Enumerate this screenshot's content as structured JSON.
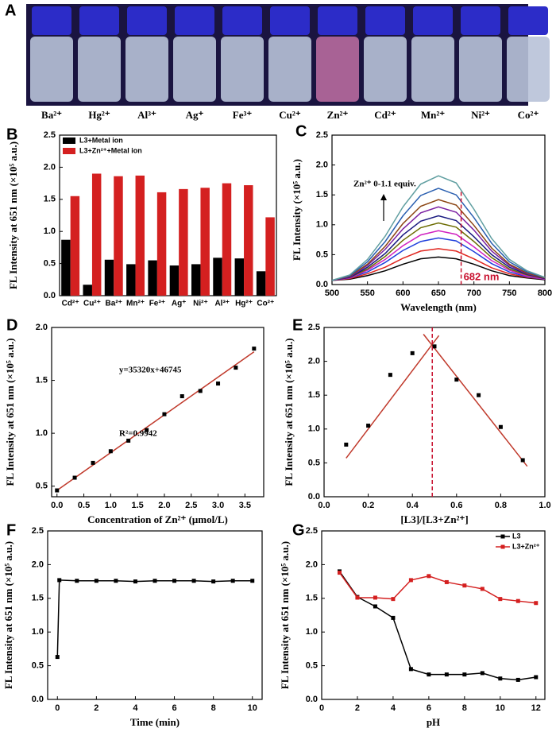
{
  "panel_a": {
    "panel": "A",
    "labels": [
      "Ba²⁺",
      "Hg²⁺",
      "Al³⁺",
      "Ag⁺",
      "Fe³⁺",
      "Cu²⁺",
      "Zn²⁺",
      "Cd²⁺",
      "Mn²⁺",
      "Ni²⁺",
      "Co²⁺"
    ]
  },
  "chart_data": [
    {
      "panel": "B",
      "type": "bar",
      "ylabel": "FL Intensity at 651 nm (×10⁵ a.u.)",
      "categories": [
        "Cd²⁺",
        "Cu²⁺",
        "Ba²⁺",
        "Mn²⁺",
        "Fe³⁺",
        "Ag⁺",
        "Ni²⁺",
        "Al³⁺",
        "Hg²⁺",
        "Co²⁺"
      ],
      "series": [
        {
          "name": "L3+Metal ion",
          "color": "#000000",
          "values": [
            0.87,
            0.17,
            0.56,
            0.49,
            0.55,
            0.47,
            0.49,
            0.59,
            0.58,
            0.38
          ]
        },
        {
          "name": "L3+Zn²⁺+Metal ion",
          "color": "#d42020",
          "values": [
            1.55,
            1.9,
            1.86,
            1.87,
            1.61,
            1.66,
            1.68,
            1.75,
            1.72,
            1.22
          ]
        }
      ],
      "ylim": [
        0,
        2.5
      ],
      "yticks": [
        {
          "value": 0,
          "label": "0.0"
        },
        0.5,
        {
          "value": 1,
          "label": "1.0"
        },
        1.5,
        {
          "value": 2,
          "label": "2.0"
        },
        2.5
      ],
      "legend": "upper left"
    },
    {
      "panel": "C",
      "type": "line",
      "xlabel": "Wavelength (nm)",
      "ylabel": "FL Intensity (×10⁵ a.u.)",
      "x": [
        500,
        525,
        550,
        575,
        600,
        625,
        650,
        675,
        700,
        725,
        750,
        775,
        800
      ],
      "series": [
        {
          "color": "#000000",
          "values": [
            0.07,
            0.09,
            0.15,
            0.23,
            0.34,
            0.43,
            0.46,
            0.43,
            0.34,
            0.23,
            0.15,
            0.11,
            0.08
          ]
        },
        {
          "color": "#e0261f",
          "values": [
            0.07,
            0.1,
            0.18,
            0.29,
            0.44,
            0.56,
            0.6,
            0.56,
            0.43,
            0.28,
            0.18,
            0.12,
            0.09
          ]
        },
        {
          "color": "#1f3fdc",
          "values": [
            0.07,
            0.11,
            0.21,
            0.37,
            0.57,
            0.72,
            0.78,
            0.73,
            0.55,
            0.35,
            0.21,
            0.13,
            0.09
          ]
        },
        {
          "color": "#d020c0",
          "values": [
            0.07,
            0.11,
            0.24,
            0.42,
            0.65,
            0.83,
            0.9,
            0.84,
            0.63,
            0.4,
            0.24,
            0.14,
            0.09
          ]
        },
        {
          "color": "#6b6b00",
          "values": [
            0.07,
            0.12,
            0.26,
            0.47,
            0.74,
            0.95,
            1.03,
            0.96,
            0.72,
            0.45,
            0.26,
            0.16,
            0.1
          ]
        },
        {
          "color": "#1a1a80",
          "values": [
            0.07,
            0.12,
            0.29,
            0.52,
            0.83,
            1.06,
            1.15,
            1.07,
            0.8,
            0.5,
            0.29,
            0.17,
            0.1
          ]
        },
        {
          "color": "#7a1fa2",
          "values": [
            0.07,
            0.13,
            0.32,
            0.59,
            0.93,
            1.2,
            1.3,
            1.21,
            0.91,
            0.56,
            0.32,
            0.18,
            0.11
          ]
        },
        {
          "color": "#8b4513",
          "values": [
            0.07,
            0.14,
            0.34,
            0.64,
            1.02,
            1.31,
            1.42,
            1.33,
            0.99,
            0.61,
            0.34,
            0.19,
            0.11
          ]
        },
        {
          "color": "#2a5fb0",
          "values": [
            0.07,
            0.15,
            0.38,
            0.72,
            1.15,
            1.49,
            1.61,
            1.5,
            1.12,
            0.69,
            0.38,
            0.21,
            0.12
          ]
        },
        {
          "color": "#5f9ea0",
          "values": [
            0.07,
            0.16,
            0.42,
            0.81,
            1.3,
            1.68,
            1.82,
            1.7,
            1.26,
            0.77,
            0.42,
            0.23,
            0.12
          ]
        }
      ],
      "xlim": [
        500,
        800
      ],
      "xticks": [
        500,
        550,
        600,
        650,
        700,
        750,
        800
      ],
      "ylim": [
        0,
        2.5
      ],
      "yticks": [
        {
          "value": 0,
          "label": "0.0"
        },
        0.5,
        {
          "value": 1,
          "label": "1.0"
        },
        1.5,
        {
          "value": 2,
          "label": "2.0"
        },
        2.5
      ],
      "annotations": [
        "Zn²⁺ 0-1.1 equiv."
      ],
      "vlines": [
        {
          "x": 682,
          "label": "682 nm",
          "color": "#c8102e",
          "dashed": true
        }
      ]
    },
    {
      "panel": "D",
      "type": "scatter",
      "xlabel": "Concentration of Zn²⁺ (μmol/L)",
      "ylabel": "FL Intensity at 651 nm (×10⁵ a.u.)",
      "x": [
        0,
        0.33,
        0.67,
        1.0,
        1.33,
        1.67,
        2.0,
        2.33,
        2.67,
        3.0,
        3.33,
        3.67
      ],
      "values": [
        0.46,
        0.58,
        0.72,
        0.83,
        0.93,
        1.03,
        1.18,
        1.35,
        1.4,
        1.47,
        1.62,
        1.8
      ],
      "color": "#000000",
      "marker": "square",
      "lines": [
        {
          "x": [
            0,
            3.67
          ],
          "values": [
            0.46,
            1.77
          ],
          "color": "#c0392b"
        }
      ],
      "xlim": [
        -0.1,
        3.85
      ],
      "xticks": [
        {
          "value": 0,
          "label": "0.0"
        },
        0.5,
        {
          "value": 1,
          "label": "1.0"
        },
        1.5,
        {
          "value": 2,
          "label": "2.0"
        },
        2.5,
        {
          "value": 3,
          "label": "3.0"
        },
        3.5
      ],
      "ylim": [
        0.4,
        2.0
      ],
      "yticks": [
        0.5,
        {
          "value": 1,
          "label": "1.0"
        },
        1.5,
        {
          "value": 2,
          "label": "2.0"
        }
      ],
      "annotations": [
        "y=35320x+46745",
        "R²=0.9942"
      ]
    },
    {
      "panel": "E",
      "type": "scatter",
      "xlabel": "[L3]/[L3+Zn²⁺]",
      "ylabel": "FL Intensity at 651 nm (×10⁵ a.u.)",
      "x": [
        0.1,
        0.2,
        0.3,
        0.4,
        0.5,
        0.6,
        0.7,
        0.8,
        0.9
      ],
      "values": [
        0.77,
        1.05,
        1.8,
        2.12,
        2.22,
        1.73,
        1.5,
        1.03,
        0.54
      ],
      "color": "#000000",
      "marker": "square",
      "lines": [
        {
          "x": [
            0.1,
            0.52
          ],
          "values": [
            0.57,
            2.38
          ],
          "color": "#c0392b"
        },
        {
          "x": [
            0.45,
            0.92
          ],
          "values": [
            2.4,
            0.45
          ],
          "color": "#c0392b"
        }
      ],
      "vlines": [
        {
          "x": 0.49,
          "color": "#c8102e",
          "dashed": true
        }
      ],
      "xlim": [
        0,
        1.0
      ],
      "xticks": [
        {
          "value": 0,
          "label": "0.0"
        },
        0.2,
        0.4,
        0.6,
        0.8,
        {
          "value": 1,
          "label": "1.0"
        }
      ],
      "ylim": [
        0,
        2.5
      ],
      "yticks": [
        {
          "value": 0,
          "label": "0.0"
        },
        0.5,
        {
          "value": 1,
          "label": "1.0"
        },
        1.5,
        {
          "value": 2,
          "label": "2.0"
        },
        2.5
      ]
    },
    {
      "panel": "F",
      "type": "line",
      "xlabel": "Time (min)",
      "ylabel": "FL Intensity at 651 nm (×10⁵ a.u.)",
      "marker": "square",
      "x": [
        0,
        0.1,
        1,
        2,
        3,
        4,
        5,
        6,
        7,
        8,
        9,
        10
      ],
      "series": [
        {
          "color": "#000000",
          "values": [
            0.63,
            1.77,
            1.76,
            1.76,
            1.76,
            1.75,
            1.76,
            1.76,
            1.76,
            1.75,
            1.76,
            1.76
          ]
        }
      ],
      "xlim": [
        -0.5,
        10.5
      ],
      "xticks": [
        0,
        2,
        4,
        6,
        8,
        10
      ],
      "ylim": [
        0,
        2.5
      ],
      "yticks": [
        {
          "value": 0,
          "label": "0.0"
        },
        0.5,
        {
          "value": 1,
          "label": "1.0"
        },
        1.5,
        {
          "value": 2,
          "label": "2.0"
        },
        2.5
      ]
    },
    {
      "panel": "G",
      "type": "line",
      "xlabel": "pH",
      "ylabel": "FL Intensity at 651 nm (×10⁵ a.u.)",
      "marker": "square",
      "x": [
        1,
        2,
        3,
        4,
        5,
        6,
        7,
        8,
        9,
        10,
        11,
        12
      ],
      "series": [
        {
          "name": "L3",
          "color": "#000000",
          "values": [
            1.9,
            1.52,
            1.38,
            1.21,
            0.45,
            0.37,
            0.37,
            0.37,
            0.39,
            0.31,
            0.29,
            0.33
          ]
        },
        {
          "name": "L3+Zn²⁺",
          "color": "#d42020",
          "values": [
            1.88,
            1.51,
            1.51,
            1.49,
            1.77,
            1.83,
            1.74,
            1.69,
            1.64,
            1.49,
            1.46,
            1.43
          ]
        }
      ],
      "xlim": [
        0,
        12.5
      ],
      "xticks": [
        0,
        2,
        4,
        6,
        8,
        10,
        12
      ],
      "ylim": [
        0,
        2.5
      ],
      "yticks": [
        {
          "value": 0,
          "label": "0.0"
        },
        0.5,
        {
          "value": 1,
          "label": "1.0"
        },
        1.5,
        {
          "value": 2,
          "label": "2.0"
        },
        2.5
      ],
      "legend": "upper right"
    }
  ]
}
